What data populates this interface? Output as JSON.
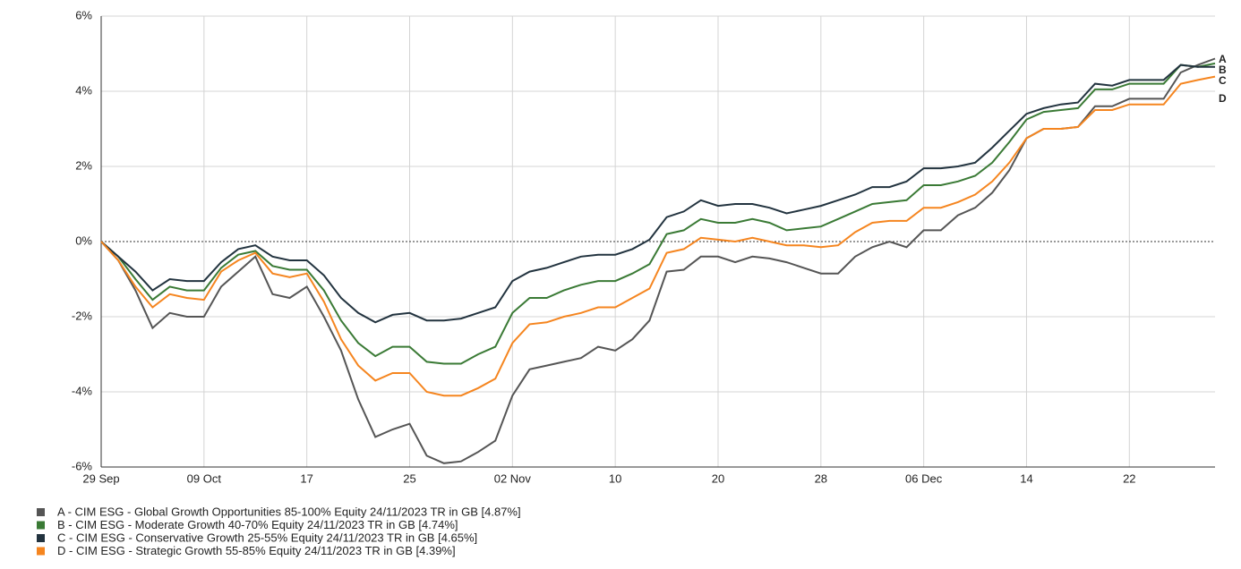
{
  "chart_data": {
    "type": "line",
    "categories": [
      "29 Sep",
      null,
      null,
      null,
      null,
      null,
      "09 Oct",
      null,
      null,
      null,
      null,
      null,
      "17",
      null,
      null,
      null,
      null,
      null,
      "25",
      null,
      null,
      null,
      null,
      null,
      "02 Nov",
      null,
      null,
      null,
      null,
      null,
      "10",
      null,
      null,
      null,
      null,
      null,
      "20",
      null,
      null,
      null,
      null,
      null,
      "28",
      null,
      null,
      null,
      null,
      null,
      "06 Dec",
      null,
      null,
      null,
      null,
      null,
      "14",
      null,
      null,
      null,
      null,
      null,
      "22",
      null,
      null,
      null,
      null,
      null
    ],
    "ylim": [
      -6,
      6
    ],
    "yticks": [
      {
        "value": -6,
        "label": "-6%"
      },
      {
        "value": -4,
        "label": "-4%"
      },
      {
        "value": -2,
        "label": "-2%"
      },
      {
        "value": 0,
        "label": "0%"
      },
      {
        "value": 2,
        "label": "2%"
      },
      {
        "value": 4,
        "label": "4%"
      },
      {
        "value": 6,
        "label": "6%"
      }
    ],
    "grid": true,
    "series": [
      {
        "name": "A - CIM ESG - Global Growth Opportunities 85-100% Equity 24/11/2023 TR in GB [4.87%]",
        "end_label": "A",
        "color": "#555555",
        "values": [
          0,
          -0.5,
          -1.3,
          -2.3,
          -1.9,
          -2.0,
          -2.0,
          -1.2,
          -0.8,
          -0.4,
          -1.4,
          -1.5,
          -1.2,
          -2.0,
          -2.9,
          -4.2,
          -5.2,
          -5.0,
          -4.85,
          -5.7,
          -5.9,
          -5.85,
          -5.6,
          -5.3,
          -4.1,
          -3.4,
          -3.3,
          -3.2,
          -3.1,
          -2.8,
          -2.9,
          -2.6,
          -2.1,
          -0.8,
          -0.75,
          -0.4,
          -0.4,
          -0.55,
          -0.4,
          -0.45,
          -0.55,
          -0.7,
          -0.85,
          -0.85,
          -0.4,
          -0.15,
          0.0,
          -0.15,
          0.3,
          0.3,
          0.7,
          0.9,
          1.3,
          1.9,
          2.75,
          3.0,
          3.0,
          3.05,
          3.6,
          3.6,
          3.8,
          3.8,
          3.8,
          4.5,
          4.7,
          4.87
        ]
      },
      {
        "name": "B - CIM ESG - Moderate Growth 40-70% Equity 24/11/2023 TR in GB [4.74%]",
        "end_label": "B",
        "color": "#3a7a35",
        "values": [
          0,
          -0.4,
          -1.0,
          -1.55,
          -1.2,
          -1.3,
          -1.3,
          -0.7,
          -0.35,
          -0.25,
          -0.65,
          -0.75,
          -0.75,
          -1.3,
          -2.1,
          -2.7,
          -3.05,
          -2.8,
          -2.8,
          -3.2,
          -3.25,
          -3.25,
          -3.0,
          -2.8,
          -1.9,
          -1.5,
          -1.5,
          -1.3,
          -1.15,
          -1.05,
          -1.05,
          -0.85,
          -0.6,
          0.2,
          0.3,
          0.6,
          0.5,
          0.5,
          0.6,
          0.5,
          0.3,
          0.35,
          0.4,
          0.6,
          0.8,
          1.0,
          1.05,
          1.1,
          1.5,
          1.5,
          1.6,
          1.75,
          2.1,
          2.65,
          3.25,
          3.45,
          3.5,
          3.55,
          4.05,
          4.05,
          4.2,
          4.2,
          4.2,
          4.7,
          4.65,
          4.74
        ]
      },
      {
        "name": "C - CIM ESG - Conservative Growth 25-55% Equity 24/11/2023 TR in GB [4.65%]",
        "end_label": "C",
        "color": "#22333f",
        "values": [
          0,
          -0.4,
          -0.8,
          -1.3,
          -1.0,
          -1.05,
          -1.05,
          -0.55,
          -0.2,
          -0.1,
          -0.4,
          -0.5,
          -0.5,
          -0.9,
          -1.5,
          -1.9,
          -2.15,
          -1.95,
          -1.9,
          -2.1,
          -2.1,
          -2.05,
          -1.9,
          -1.75,
          -1.05,
          -0.8,
          -0.7,
          -0.55,
          -0.4,
          -0.35,
          -0.35,
          -0.2,
          0.05,
          0.65,
          0.8,
          1.1,
          0.95,
          1.0,
          1.0,
          0.9,
          0.75,
          0.85,
          0.95,
          1.1,
          1.25,
          1.45,
          1.45,
          1.6,
          1.95,
          1.95,
          2.0,
          2.1,
          2.5,
          2.95,
          3.4,
          3.55,
          3.65,
          3.7,
          4.2,
          4.15,
          4.3,
          4.3,
          4.3,
          4.7,
          4.65,
          4.65
        ]
      },
      {
        "name": "D - CIM ESG - Strategic Growth 55-85% Equity 24/11/2023 TR in GB [4.39%]",
        "end_label": "D",
        "color": "#f5851f",
        "values": [
          0,
          -0.5,
          -1.2,
          -1.75,
          -1.4,
          -1.5,
          -1.55,
          -0.8,
          -0.5,
          -0.3,
          -0.85,
          -0.95,
          -0.85,
          -1.6,
          -2.6,
          -3.3,
          -3.7,
          -3.5,
          -3.5,
          -4.0,
          -4.1,
          -4.1,
          -3.9,
          -3.65,
          -2.7,
          -2.2,
          -2.15,
          -2.0,
          -1.9,
          -1.75,
          -1.75,
          -1.5,
          -1.25,
          -0.3,
          -0.2,
          0.1,
          0.05,
          0.0,
          0.1,
          0.0,
          -0.1,
          -0.1,
          -0.15,
          -0.1,
          0.25,
          0.5,
          0.55,
          0.55,
          0.9,
          0.9,
          1.05,
          1.25,
          1.6,
          2.1,
          2.75,
          3.0,
          3.0,
          3.05,
          3.5,
          3.5,
          3.65,
          3.65,
          3.65,
          4.2,
          4.3,
          4.39
        ]
      }
    ]
  }
}
